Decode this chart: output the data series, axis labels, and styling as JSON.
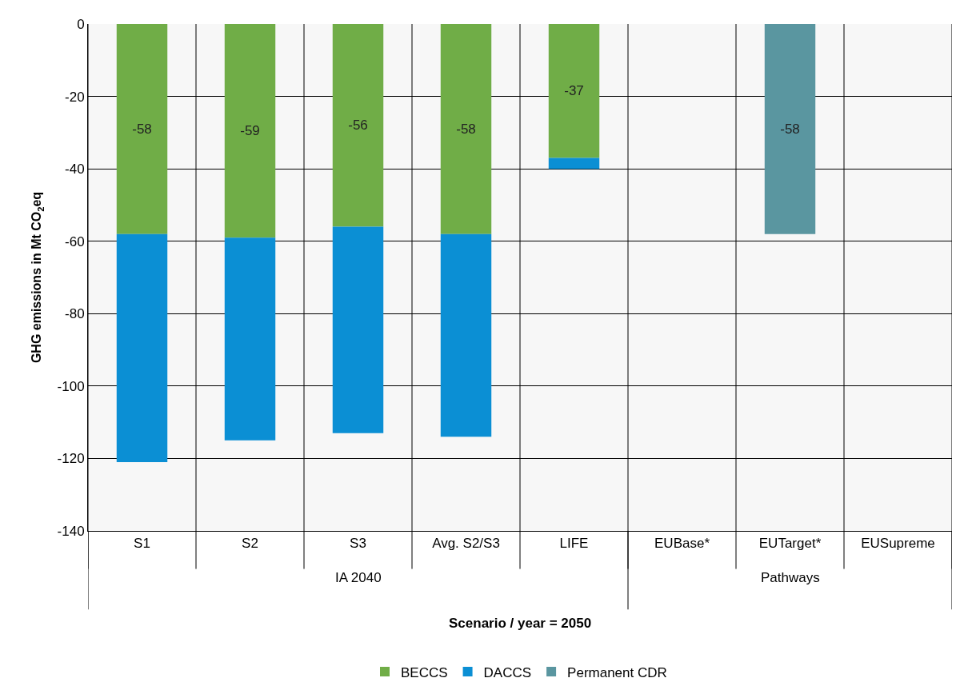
{
  "chart_data": {
    "type": "bar",
    "stacked": true,
    "xlabel": "Scenario / year = 2050",
    "ylabel": "GHG emissions in Mt CO$_{2}$eq",
    "categories": [
      "S1",
      "S2",
      "S3",
      "Avg. S2/S3",
      "LIFE",
      "EUBase*",
      "EUTarget*",
      "EUSupreme"
    ],
    "series": [
      {
        "name": "BECCS",
        "color": "#70ad47",
        "values": [
          -58,
          -59,
          -56,
          -58,
          -37,
          null,
          null,
          null
        ],
        "value_labels": [
          "-58",
          "-59",
          "-56",
          "-58",
          "-37",
          null,
          null,
          null
        ]
      },
      {
        "name": "DACCS",
        "color": "#0b8fd4",
        "values": [
          -63,
          -56,
          -57,
          -56,
          -3,
          null,
          null,
          null
        ]
      },
      {
        "name": "Permanent CDR",
        "color": "#5a96a0",
        "values": [
          null,
          null,
          null,
          null,
          null,
          null,
          -58,
          null
        ],
        "value_labels": [
          null,
          null,
          null,
          null,
          null,
          null,
          "-58",
          null
        ]
      }
    ],
    "annotations": [
      "IA 2040",
      "Pathways"
    ],
    "ylim": [
      -140,
      0
    ],
    "yticks": [
      -140,
      -120,
      -100,
      -80,
      -60,
      -40,
      -20,
      0
    ],
    "grid": true,
    "legend": "bottom"
  }
}
